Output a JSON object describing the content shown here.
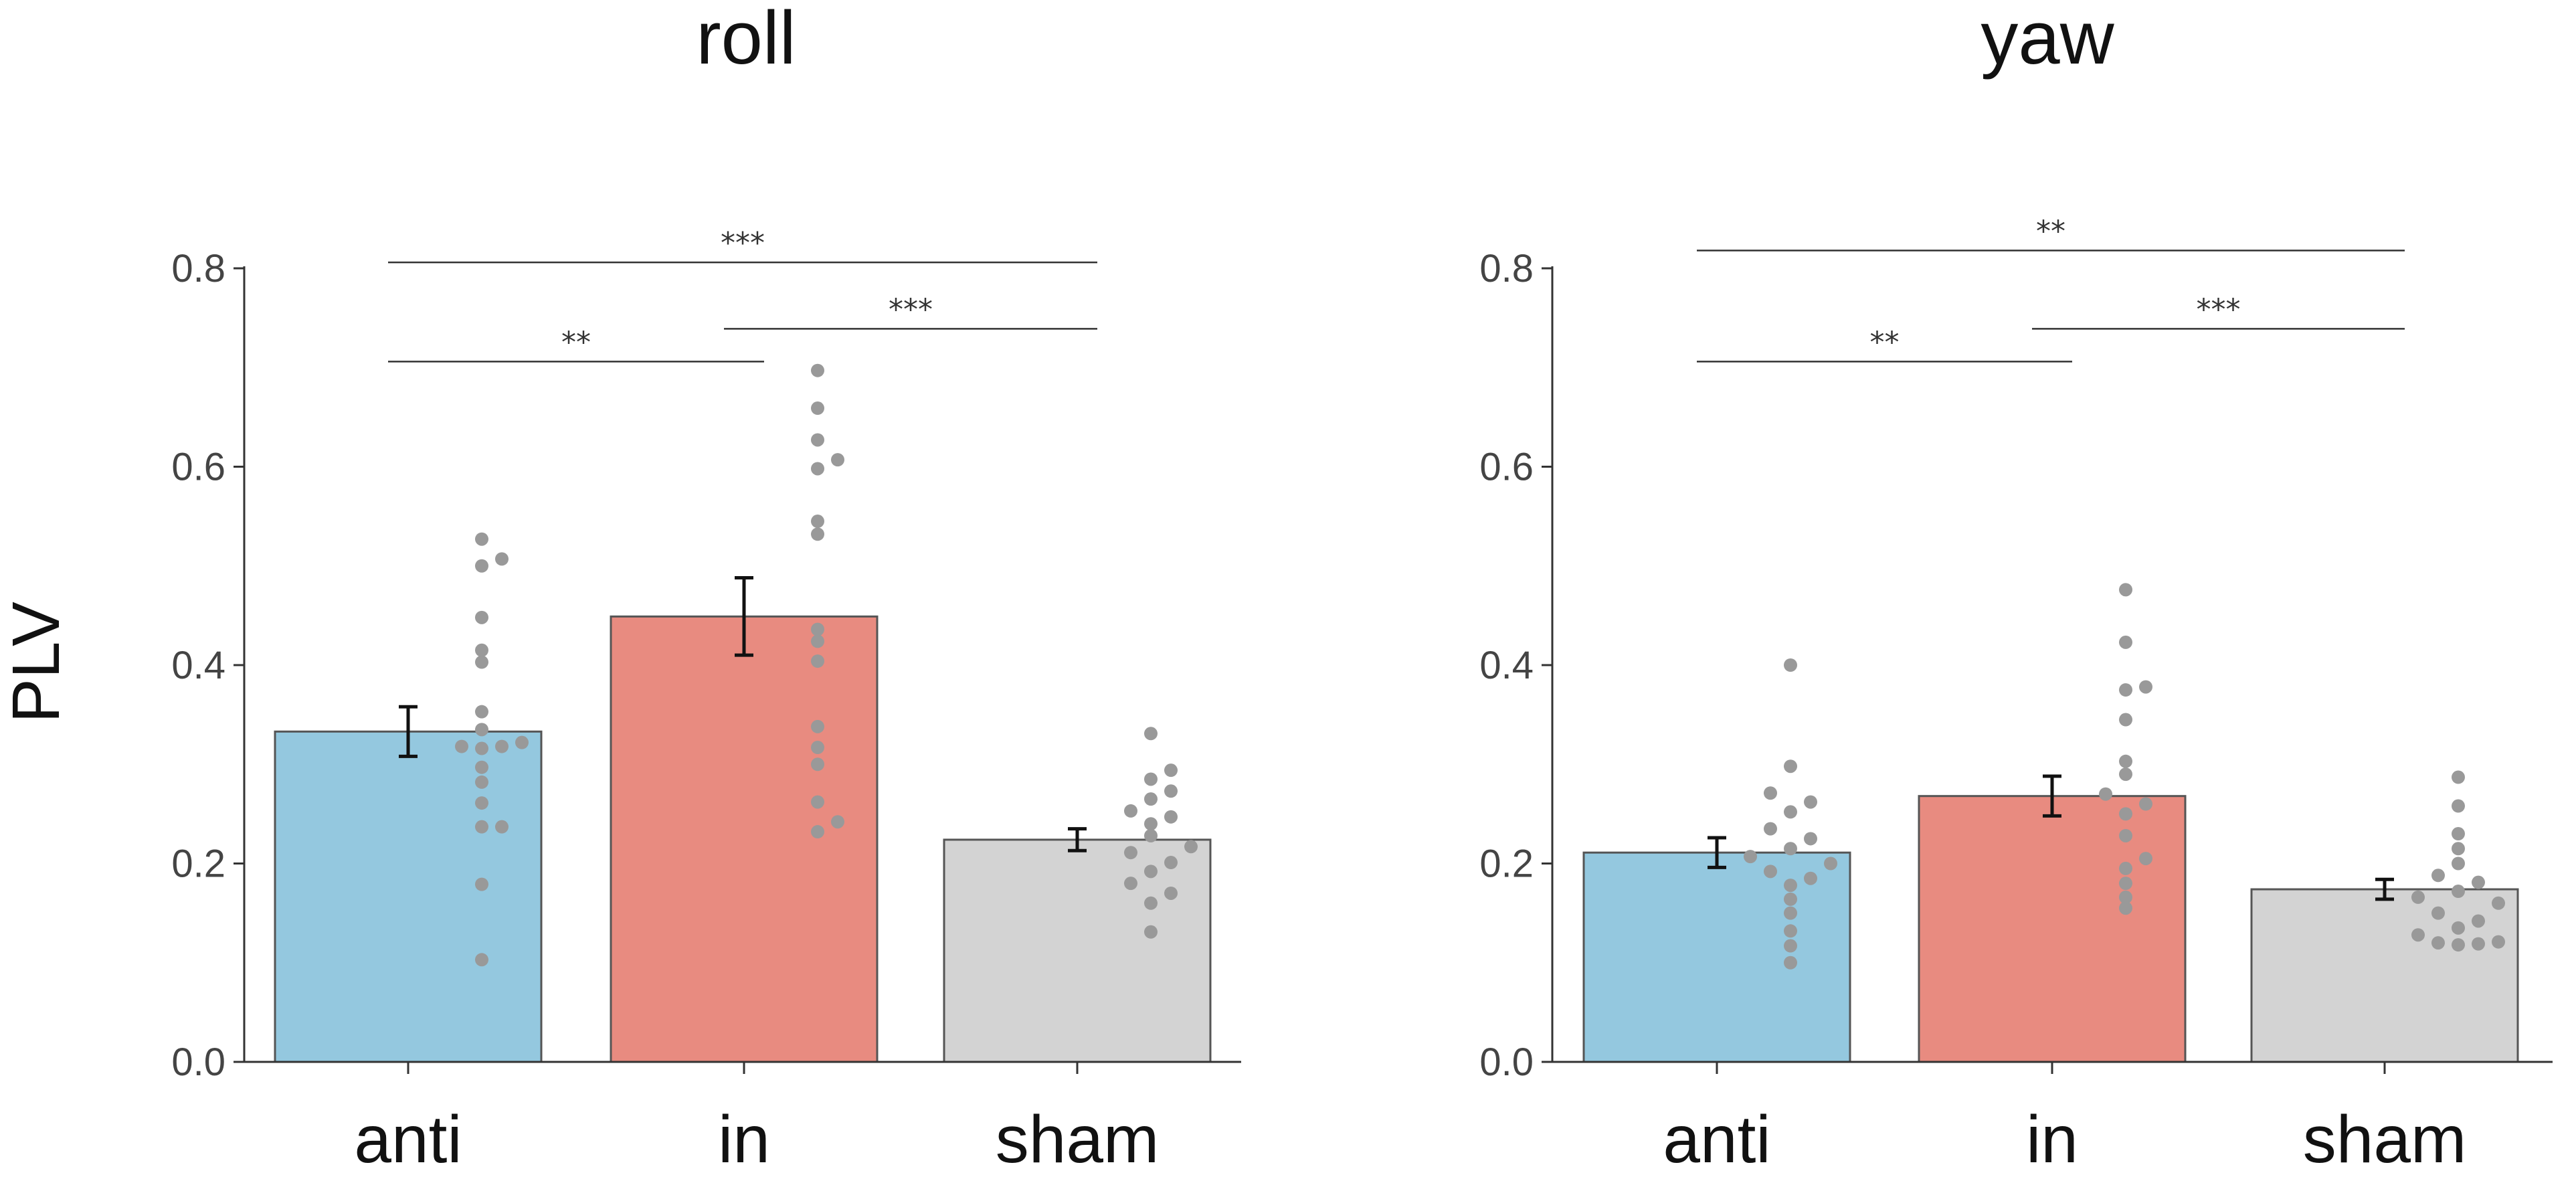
{
  "y_axis_label": "PLV",
  "colors": {
    "anti": "#94c8df",
    "in": "#e88b80",
    "sham": "#d3d3d3",
    "dots": "#999999"
  },
  "chart_data": [
    {
      "type": "bar",
      "title": "roll",
      "xlabel": "",
      "ylabel": "PLV",
      "ylim": [
        0,
        0.8
      ],
      "yticks": [
        "0.0",
        "0.2",
        "0.4",
        "0.6",
        "0.8"
      ],
      "categories": [
        "anti",
        "in",
        "sham"
      ],
      "values": [
        0.333,
        0.449,
        0.224
      ],
      "errors": [
        0.025,
        0.039,
        0.011
      ],
      "points": [
        [
          0.527,
          0.507,
          0.5,
          0.448,
          0.415,
          0.403,
          0.353,
          0.335,
          0.322,
          0.318,
          0.318,
          0.316,
          0.297,
          0.282,
          0.261,
          0.237,
          0.237,
          0.179,
          0.103
        ],
        [
          0.697,
          0.659,
          0.627,
          0.607,
          0.598,
          0.545,
          0.532,
          0.436,
          0.424,
          0.404,
          0.338,
          0.317,
          0.3,
          0.262,
          0.242,
          0.232
        ],
        [
          0.331,
          0.294,
          0.285,
          0.273,
          0.265,
          0.253,
          0.247,
          0.24,
          0.228,
          0.217,
          0.211,
          0.201,
          0.192,
          0.18,
          0.17,
          0.16,
          0.131
        ]
      ],
      "significance": [
        {
          "from": 0,
          "to": 2,
          "y": 0.806,
          "label": "***"
        },
        {
          "from": 0,
          "to": 1,
          "y": 0.706,
          "label": "**"
        },
        {
          "from": 1,
          "to": 2,
          "y": 0.739,
          "label": "***"
        }
      ]
    },
    {
      "type": "bar",
      "title": "yaw",
      "xlabel": "",
      "ylabel": "",
      "ylim": [
        0,
        0.8
      ],
      "yticks": [
        "0.0",
        "0.2",
        "0.4",
        "0.6",
        "0.8"
      ],
      "categories": [
        "anti",
        "in",
        "sham"
      ],
      "values": [
        0.211,
        0.268,
        0.174
      ],
      "errors": [
        0.015,
        0.02,
        0.01
      ],
      "points": [
        [
          0.4,
          0.298,
          0.271,
          0.262,
          0.252,
          0.235,
          0.225,
          0.215,
          0.207,
          0.2,
          0.192,
          0.185,
          0.178,
          0.164,
          0.15,
          0.132,
          0.117,
          0.1
        ],
        [
          0.476,
          0.423,
          0.378,
          0.375,
          0.345,
          0.303,
          0.29,
          0.27,
          0.26,
          0.25,
          0.228,
          0.205,
          0.195,
          0.18,
          0.166,
          0.155
        ],
        [
          0.287,
          0.258,
          0.23,
          0.215,
          0.2,
          0.188,
          0.181,
          0.172,
          0.166,
          0.16,
          0.15,
          0.142,
          0.135,
          0.128,
          0.121,
          0.12,
          0.119,
          0.118
        ]
      ],
      "significance": [
        {
          "from": 0,
          "to": 2,
          "y": 0.818,
          "label": "**"
        },
        {
          "from": 0,
          "to": 1,
          "y": 0.706,
          "label": "**"
        },
        {
          "from": 1,
          "to": 2,
          "y": 0.739,
          "label": "***"
        }
      ]
    }
  ]
}
